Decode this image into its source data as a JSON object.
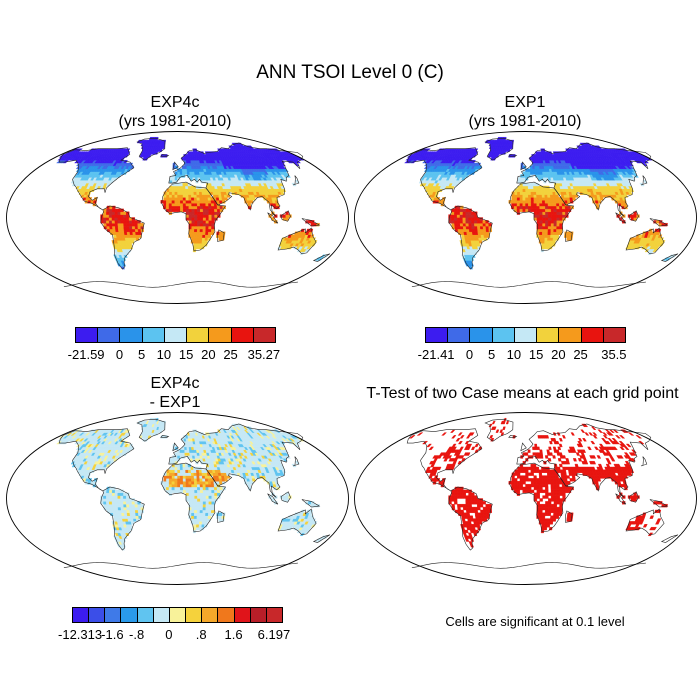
{
  "title": "ANN TSOI Level 0 (C)",
  "panels": [
    {
      "id": "exp4c",
      "title_line1": "EXP4c",
      "title_line2": "(yrs 1981-2010)",
      "field": "abs"
    },
    {
      "id": "exp1",
      "title_line1": "EXP1",
      "title_line2": "(yrs 1981-2010)",
      "field": "abs"
    },
    {
      "id": "diff",
      "title_line1": "EXP4c",
      "title_line2": "- EXP1",
      "field": "diff"
    },
    {
      "id": "ttest",
      "title_line1": "T-Test of two Case means at each grid point",
      "title_line2": "",
      "field": "sig"
    }
  ],
  "colorbars": {
    "exp4c": {
      "colors": [
        "#3c1cf0",
        "#3f6ae8",
        "#2a93ea",
        "#5cc3f0",
        "#c5e8f5",
        "#f2d23c",
        "#f59a1c",
        "#e8140f",
        "#c8282a"
      ],
      "labels": [
        "-21.59",
        "0",
        "5",
        "10",
        "15",
        "20",
        "25",
        "35.27"
      ]
    },
    "exp1": {
      "colors": [
        "#3c1cf0",
        "#3f6ae8",
        "#2a93ea",
        "#5cc3f0",
        "#c5e8f5",
        "#f2d23c",
        "#f59a1c",
        "#e8140f",
        "#c8282a"
      ],
      "labels": [
        "-21.41",
        "0",
        "5",
        "10",
        "15",
        "20",
        "25",
        "35.5"
      ]
    },
    "diff": {
      "colors": [
        "#3c1cf0",
        "#3b4ee8",
        "#3f7ae8",
        "#2a9aea",
        "#60c4f0",
        "#c5e8f5",
        "#f8f29a",
        "#f5d23c",
        "#f5a82a",
        "#f0781c",
        "#e0141a",
        "#b81e28",
        "#c8282a"
      ],
      "labels": [
        "-12.313",
        "-1.6",
        "-.8",
        "0",
        ".8",
        "1.6",
        "6.197"
      ]
    }
  },
  "note": "Cells are significant at 0.1 level",
  "chart_data": [
    {
      "type": "heatmap",
      "title": "EXP4c",
      "subtitle": "(yrs 1981-2010)",
      "colorbar_ticks": [
        -21.59,
        0,
        5,
        10,
        15,
        20,
        25,
        35.27
      ]
    },
    {
      "type": "heatmap",
      "title": "EXP1",
      "subtitle": "(yrs 1981-2010)",
      "colorbar_ticks": [
        -21.41,
        0,
        5,
        10,
        15,
        20,
        25,
        35.5
      ]
    },
    {
      "type": "heatmap",
      "title": "EXP4c",
      "subtitle": "- EXP1",
      "colorbar_ticks": [
        -12.313,
        -1.6,
        -0.8,
        0,
        0.8,
        1.6,
        6.197
      ]
    },
    {
      "type": "heatmap",
      "title": "T-Test of two Case means at each grid point",
      "significance_level": 0.1
    }
  ]
}
